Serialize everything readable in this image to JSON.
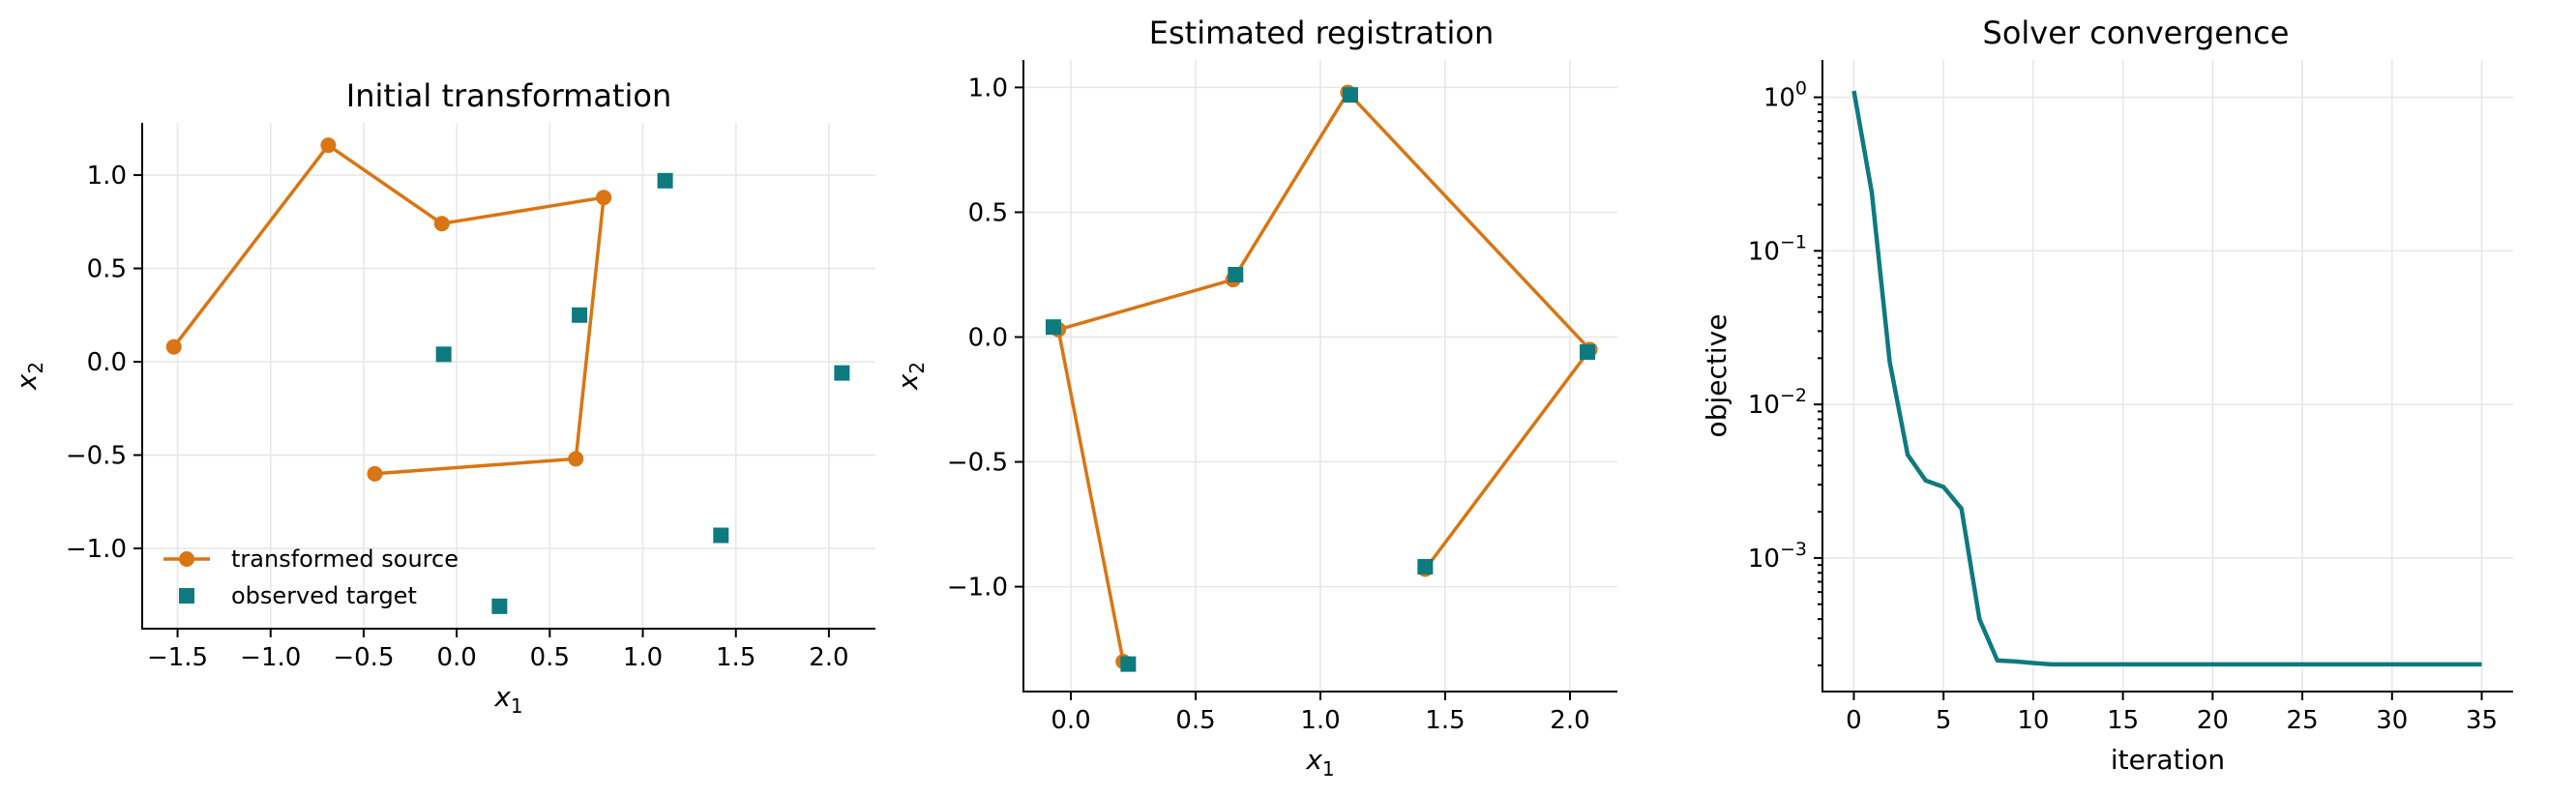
{
  "colors": {
    "source": "#d97512",
    "target": "#0d7a80",
    "convergence": "#0d7a80"
  },
  "chart_data": [
    {
      "type": "line+scatter",
      "title": "Initial transformation",
      "xlabel": "x",
      "xlabel_sub": "1",
      "ylabel": "x",
      "ylabel_sub": "2",
      "xlim": [
        -1.69,
        2.25
      ],
      "ylim": [
        -1.43,
        1.28
      ],
      "xticks": [
        -1.5,
        -1.0,
        -0.5,
        0.0,
        0.5,
        1.0,
        1.5,
        2.0
      ],
      "xtick_labels": [
        "−1.5",
        "−1.0",
        "−0.5",
        "0.0",
        "0.5",
        "1.0",
        "1.5",
        "2.0"
      ],
      "yticks": [
        -1.0,
        -0.5,
        0.0,
        0.5,
        1.0
      ],
      "ytick_labels": [
        "−1.0",
        "−0.5",
        "0.0",
        "0.5",
        "1.0"
      ],
      "grid": true,
      "legend": {
        "placement": "lower-left",
        "entries": [
          {
            "label": "transformed source",
            "series": "source"
          },
          {
            "label": "observed target",
            "series": "target"
          }
        ]
      },
      "series": [
        {
          "name": "transformed source",
          "key": "source",
          "style": "line-circle",
          "x": [
            -1.52,
            -0.69,
            -0.08,
            0.79,
            0.64,
            -0.44
          ],
          "y": [
            0.08,
            1.16,
            0.74,
            0.88,
            -0.52,
            -0.6
          ]
        },
        {
          "name": "observed target",
          "key": "target",
          "style": "square",
          "x": [
            -0.07,
            0.66,
            1.12,
            2.07,
            1.42,
            0.23
          ],
          "y": [
            0.04,
            0.25,
            0.97,
            -0.06,
            -0.93,
            -1.31
          ]
        }
      ]
    },
    {
      "type": "line+scatter",
      "title": "Estimated registration",
      "xlabel": "x",
      "xlabel_sub": "1",
      "ylabel": "x",
      "ylabel_sub": "2",
      "xlim": [
        -0.19,
        2.19
      ],
      "ylim": [
        -1.42,
        1.11
      ],
      "xticks": [
        0.0,
        0.5,
        1.0,
        1.5,
        2.0
      ],
      "xtick_labels": [
        "0.0",
        "0.5",
        "1.0",
        "1.5",
        "2.0"
      ],
      "yticks": [
        -1.0,
        -0.5,
        0.0,
        0.5,
        1.0
      ],
      "ytick_labels": [
        "−1.0",
        "−0.5",
        "0.0",
        "0.5",
        "1.0"
      ],
      "grid": true,
      "series": [
        {
          "key": "source",
          "style": "line-circle",
          "x": [
            0.21,
            -0.05,
            0.65,
            1.11,
            2.08,
            1.42
          ],
          "y": [
            -1.3,
            0.03,
            0.23,
            0.98,
            -0.05,
            -0.93
          ]
        },
        {
          "key": "target",
          "style": "square",
          "x": [
            -0.07,
            0.66,
            1.12,
            2.07,
            1.42,
            0.23
          ],
          "y": [
            0.04,
            0.25,
            0.97,
            -0.06,
            -0.92,
            -1.31
          ]
        }
      ]
    },
    {
      "type": "line",
      "title": "Solver convergence",
      "xlabel": "iteration",
      "ylabel": "objective",
      "yscale": "log",
      "xlim": [
        -1.75,
        36.75
      ],
      "ylim": [
        0.000135,
        1.75
      ],
      "xticks": [
        0,
        5,
        10,
        15,
        20,
        25,
        30,
        35
      ],
      "xtick_labels": [
        "0",
        "5",
        "10",
        "15",
        "20",
        "25",
        "30",
        "35"
      ],
      "ymajor": [
        1,
        0.1,
        0.01,
        0.001
      ],
      "ytick_labels": [
        {
          "base": "10",
          "exp": "0"
        },
        {
          "base": "10",
          "exp": "−1"
        },
        {
          "base": "10",
          "exp": "−2"
        },
        {
          "base": "10",
          "exp": "−3"
        }
      ],
      "grid": true,
      "series": [
        {
          "key": "convergence",
          "style": "line",
          "x": [
            0,
            1,
            2,
            3,
            4,
            5,
            6,
            7,
            8,
            9,
            10,
            11,
            12,
            13,
            14,
            15,
            16,
            17,
            18,
            19,
            20,
            21,
            22,
            23,
            24,
            25,
            26,
            27,
            28,
            29,
            30,
            31,
            32,
            33,
            34,
            35
          ],
          "y": [
            1.1,
            0.24,
            0.019,
            0.0047,
            0.0032,
            0.0029,
            0.0021,
            0.0004,
            0.000215,
            0.000212,
            0.000207,
            0.000203,
            0.000203,
            0.000203,
            0.000203,
            0.000203,
            0.000203,
            0.000203,
            0.000203,
            0.000203,
            0.000203,
            0.000203,
            0.000203,
            0.000203,
            0.000203,
            0.000203,
            0.000203,
            0.000203,
            0.000203,
            0.000203,
            0.000203,
            0.000203,
            0.000203,
            0.000203,
            0.000203,
            0.000203
          ]
        }
      ]
    }
  ]
}
